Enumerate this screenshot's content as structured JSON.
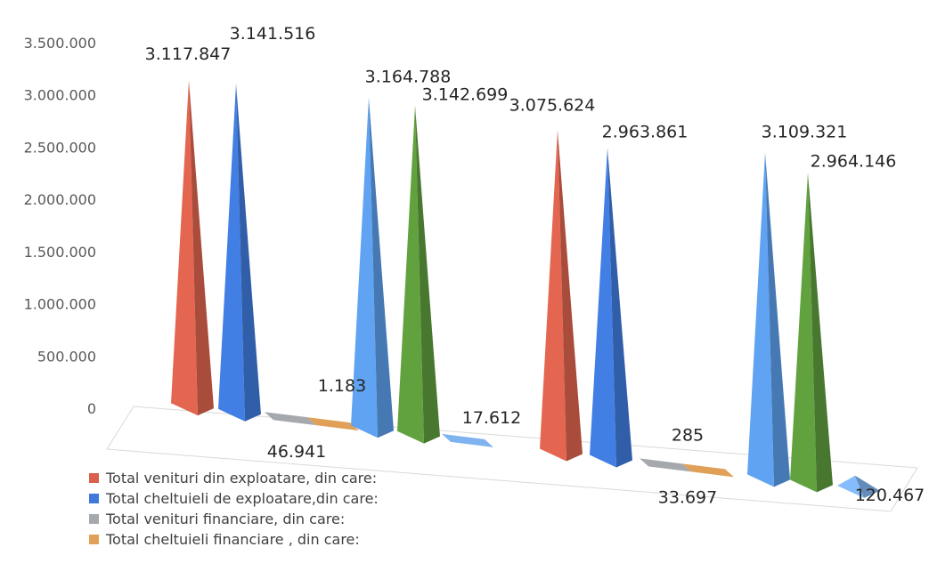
{
  "chart_data": {
    "type": "bar",
    "style": "3d-pyramid",
    "ylim": [
      0,
      3500000
    ],
    "yticks": [
      "0",
      "500.000",
      "1.000.000",
      "1.500.000",
      "2.000.000",
      "2.500.000",
      "3.000.000",
      "3.500.000"
    ],
    "grid": false,
    "legend_position": "bottom-left",
    "groups": [
      {
        "bars": [
          {
            "color": "#D9614C",
            "value": 3117847,
            "label": "3.117.847"
          },
          {
            "color": "#3F79D9",
            "value": 3141516,
            "label": "3.141.516"
          },
          {
            "color": "#A5A8AD",
            "value": 46941,
            "label": "46.941"
          },
          {
            "color": "#E0A057",
            "value": 1183,
            "label": "1.183"
          },
          {
            "color": "#5A9BE6",
            "value": 3164788,
            "label": "3.164.788"
          },
          {
            "color": "#5C9A3C",
            "value": 3142699,
            "label": "3.142.699"
          },
          {
            "color": "#7FB3F0",
            "value": 17612,
            "label": "17.612"
          }
        ]
      },
      {
        "bars": [
          {
            "color": "#D9614C",
            "value": 3075624,
            "label": "3.075.624"
          },
          {
            "color": "#3F79D9",
            "value": 2963861,
            "label": "2.963.861"
          },
          {
            "color": "#A5A8AD",
            "value": 33697,
            "label": "33.697"
          },
          {
            "color": "#E0A057",
            "value": 285,
            "label": "285"
          },
          {
            "color": "#5A9BE6",
            "value": 3109321,
            "label": "3.109.321"
          },
          {
            "color": "#5C9A3C",
            "value": 2964146,
            "label": "2.964.146"
          },
          {
            "color": "#7FB3F0",
            "value": 120467,
            "label": "120.467"
          }
        ]
      }
    ],
    "legend": [
      {
        "color": "#D9614C",
        "label": "Total venituri din exploatare, din care:"
      },
      {
        "color": "#3F79D9",
        "label": "Total cheltuieli de exploatare,din care:"
      },
      {
        "color": "#A5A8AD",
        "label": "Total venituri financiare, din care:"
      },
      {
        "color": "#E0A057",
        "label": "Total cheltuieli financiare , din care:"
      }
    ]
  }
}
